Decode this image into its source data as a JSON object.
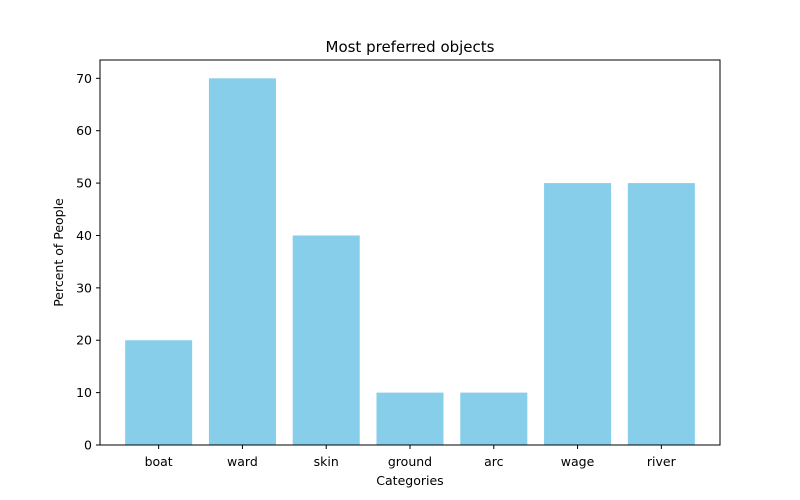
{
  "chart_data": {
    "type": "bar",
    "title": "Most preferred objects",
    "xlabel": "Categories",
    "ylabel": "Percent of People",
    "categories": [
      "boat",
      "ward",
      "skin",
      "ground",
      "arc",
      "wage",
      "river"
    ],
    "values": [
      20,
      70,
      40,
      10,
      10,
      50,
      50
    ],
    "ylim": [
      0,
      73.5
    ],
    "yticks": [
      0,
      10,
      20,
      30,
      40,
      50,
      60,
      70
    ],
    "bar_color": "#87CEEB",
    "grid": false,
    "legend": "none"
  }
}
